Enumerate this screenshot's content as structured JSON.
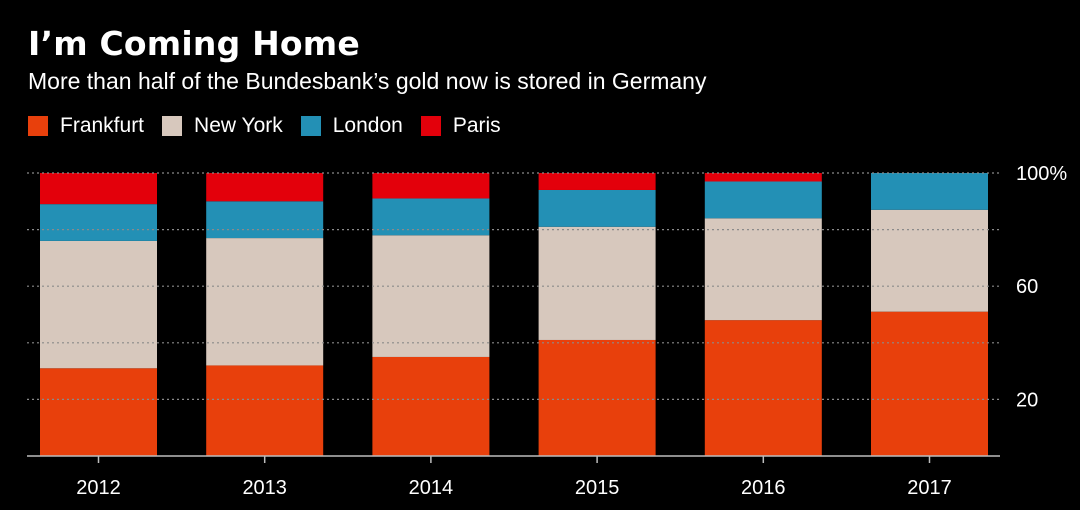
{
  "chart_data": {
    "type": "bar",
    "stacked": true,
    "title": "I’m Coming Home",
    "subtitle": "More than half of the Bundesbank’s gold now is stored in Germany",
    "categories": [
      "2012",
      "2013",
      "2014",
      "2015",
      "2016",
      "2017"
    ],
    "series": [
      {
        "name": "Frankfurt",
        "color": "#e8400c",
        "values": [
          31,
          32,
          35,
          41,
          48,
          51
        ]
      },
      {
        "name": "New York",
        "color": "#d7c8bd",
        "values": [
          45,
          45,
          43,
          40,
          36,
          36
        ]
      },
      {
        "name": "London",
        "color": "#2390b5",
        "values": [
          13,
          13,
          13,
          13,
          13,
          13
        ]
      },
      {
        "name": "Paris",
        "color": "#e3000b",
        "values": [
          11,
          10,
          9,
          6,
          3,
          0
        ]
      }
    ],
    "ylim": [
      0,
      100
    ],
    "yticks": [
      20,
      60,
      "100%"
    ],
    "gridlines_at": [
      20,
      40,
      60,
      80,
      100
    ],
    "xlabel": "",
    "ylabel": "",
    "legend_position": "top-left"
  }
}
